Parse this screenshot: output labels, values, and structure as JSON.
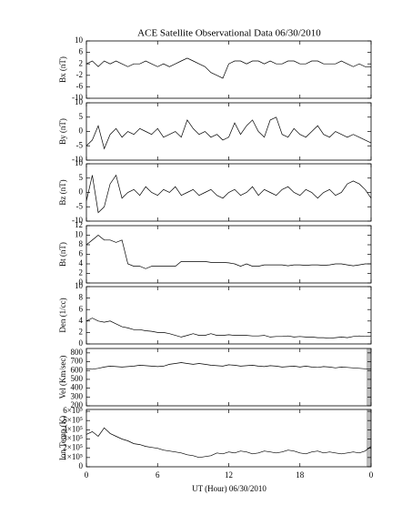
{
  "title": "ACE Satellite Observational Data   06/30/2010",
  "xlabel": "UT (Hour)   06/30/2010",
  "xlim": [
    0,
    24
  ],
  "xticks": [
    0,
    6,
    12,
    18,
    {
      "value": 24,
      "label": "0"
    }
  ],
  "x": [
    0,
    0.5,
    1,
    1.5,
    2,
    2.5,
    3,
    3.5,
    4,
    4.5,
    5,
    5.5,
    6,
    6.5,
    7,
    7.5,
    8,
    8.5,
    9,
    9.5,
    10,
    10.5,
    11,
    11.5,
    12,
    12.5,
    13,
    13.5,
    14,
    14.5,
    15,
    15.5,
    16,
    16.5,
    17,
    17.5,
    18,
    18.5,
    19,
    19.5,
    20,
    20.5,
    21,
    21.5,
    22,
    22.5,
    23,
    23.5,
    24
  ],
  "chart_data": [
    {
      "type": "line",
      "ylabel": "Bx (nT)",
      "color": "#000000",
      "ylim": [
        -10,
        10
      ],
      "yticks": [
        -10,
        -6,
        -2,
        2,
        6,
        10
      ],
      "values": [
        2,
        3,
        1,
        3,
        2,
        3,
        2,
        1,
        2,
        2,
        3,
        2,
        1,
        2,
        1,
        2,
        3,
        4,
        3,
        2,
        1,
        -1,
        -2,
        -3,
        2,
        3,
        3,
        2,
        3,
        3,
        2,
        3,
        2,
        2,
        3,
        3,
        2,
        2,
        3,
        3,
        2,
        2,
        2,
        3,
        2,
        1,
        2,
        1,
        1
      ]
    },
    {
      "type": "line",
      "ylabel": "By (nT)",
      "color": "#000000",
      "ylim": [
        -10,
        10
      ],
      "yticks": [
        -10,
        -5,
        0,
        5,
        10
      ],
      "values": [
        -5,
        -3,
        2,
        -6,
        -1,
        1,
        -2,
        0,
        -1,
        1,
        0,
        -1,
        1,
        -2,
        -1,
        0,
        -2,
        4,
        1,
        -1,
        0,
        -2,
        -1,
        -3,
        -2,
        3,
        -1,
        2,
        4,
        0,
        -2,
        4,
        5,
        -1,
        -2,
        1,
        -1,
        -2,
        0,
        2,
        -1,
        -2,
        0,
        -1,
        -2,
        -1,
        -2,
        -3,
        -4
      ]
    },
    {
      "type": "line",
      "ylabel": "Bz (nT)",
      "color": "#000000",
      "ylim": [
        -10,
        10
      ],
      "yticks": [
        -10,
        -5,
        0,
        5,
        10
      ],
      "values": [
        -3,
        6,
        -7,
        -5,
        3,
        6,
        -2,
        0,
        1,
        -1,
        2,
        0,
        -1,
        1,
        0,
        2,
        -1,
        0,
        1,
        -1,
        0,
        1,
        -1,
        -2,
        0,
        1,
        -1,
        0,
        2,
        -1,
        1,
        0,
        -1,
        1,
        2,
        0,
        -1,
        1,
        0,
        -2,
        0,
        1,
        -1,
        0,
        3,
        4,
        3,
        1,
        -2
      ]
    },
    {
      "type": "line",
      "ylabel": "Bt (nT)",
      "color": "#000000",
      "ylim": [
        0,
        12
      ],
      "yticks": [
        0,
        2,
        4,
        6,
        8,
        10,
        12
      ],
      "values": [
        8,
        9,
        10,
        9,
        9,
        8.5,
        9,
        4,
        3.5,
        3.5,
        3,
        3.5,
        3.5,
        3.5,
        3.5,
        3.5,
        4.5,
        4.5,
        4.5,
        4.5,
        4.5,
        4.3,
        4.3,
        4.3,
        4.2,
        4,
        3.5,
        4,
        3.5,
        3.5,
        3.8,
        3.8,
        3.8,
        3.8,
        3.6,
        3.8,
        3.8,
        3.7,
        3.8,
        3.8,
        3.7,
        3.8,
        4,
        4,
        3.8,
        3.6,
        3.8,
        4,
        4
      ]
    },
    {
      "type": "line",
      "ylabel": "Den (1/cc)",
      "color": "#000000",
      "ylim": [
        0,
        10
      ],
      "yticks": [
        0,
        2,
        4,
        6,
        8,
        10
      ],
      "values": [
        4,
        4.5,
        4,
        3.8,
        4,
        3.5,
        3,
        2.8,
        2.5,
        2.5,
        2.3,
        2.2,
        2,
        2,
        1.8,
        1.5,
        1.2,
        1.5,
        1.8,
        1.5,
        1.5,
        1.8,
        1.5,
        1.5,
        1.6,
        1.5,
        1.5,
        1.5,
        1.4,
        1.4,
        1.5,
        1.2,
        1.3,
        1.3,
        1.4,
        1.2,
        1.3,
        1.2,
        1.2,
        1.1,
        1.1,
        1,
        1.1,
        1.2,
        1.1,
        1.3,
        1.4,
        1.3,
        1.4
      ]
    },
    {
      "type": "line",
      "ylabel": "Vel (Km/sec)",
      "color": "#000000",
      "ylim": [
        200,
        850
      ],
      "yticks": [
        200,
        300,
        400,
        500,
        600,
        700,
        800
      ],
      "values": [
        620,
        615,
        625,
        640,
        650,
        645,
        640,
        645,
        650,
        660,
        655,
        650,
        645,
        650,
        670,
        680,
        690,
        680,
        670,
        680,
        670,
        660,
        655,
        650,
        665,
        660,
        650,
        655,
        660,
        650,
        645,
        655,
        650,
        640,
        645,
        650,
        640,
        650,
        640,
        635,
        645,
        640,
        630,
        640,
        635,
        630,
        625,
        620,
        620
      ]
    },
    {
      "type": "line",
      "ylabel": "Ion Temp (K)",
      "color": "#000000",
      "ylim": [
        0,
        620000
      ],
      "yticks": [
        0,
        {
          "value": 100000,
          "label": "1×10⁵"
        },
        {
          "value": 200000,
          "label": "2×10⁵"
        },
        {
          "value": 300000,
          "label": "3×10⁵"
        },
        {
          "value": 400000,
          "label": "4×10⁵"
        },
        {
          "value": 500000,
          "label": "5×10⁵"
        },
        {
          "value": 600000,
          "label": "6×10⁵"
        }
      ],
      "values": [
        350000,
        380000,
        330000,
        420000,
        360000,
        330000,
        300000,
        280000,
        250000,
        240000,
        220000,
        210000,
        200000,
        180000,
        170000,
        160000,
        150000,
        130000,
        120000,
        100000,
        110000,
        120000,
        150000,
        140000,
        160000,
        150000,
        170000,
        160000,
        140000,
        150000,
        170000,
        160000,
        150000,
        160000,
        180000,
        170000,
        150000,
        140000,
        160000,
        170000,
        150000,
        160000,
        150000,
        140000,
        150000,
        160000,
        150000,
        170000,
        220000
      ]
    }
  ]
}
